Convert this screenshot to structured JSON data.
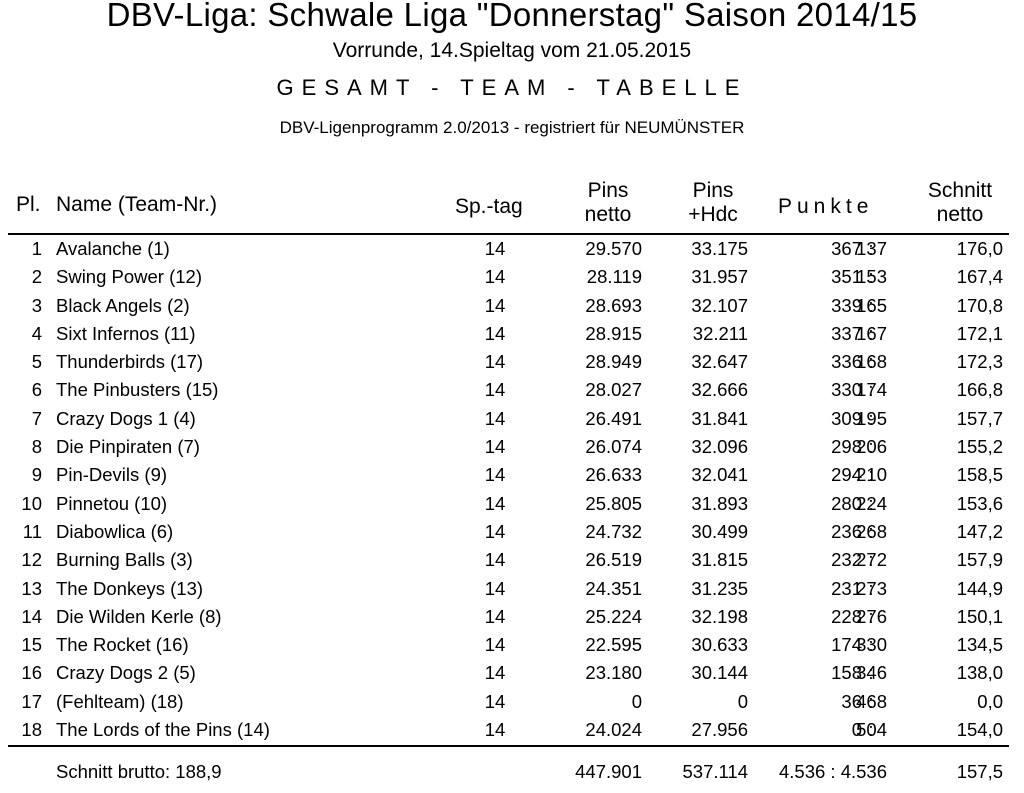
{
  "header": {
    "title": "DBV-Liga: Schwale Liga \"Donnerstag\" Saison 2014/15",
    "subtitle": "Vorrunde, 14.Spieltag vom 21.05.2015",
    "heading": "GESAMT - TEAM - TABELLE",
    "program": "DBV-Ligenprogramm 2.0/2013 - registriert für NEUMÜNSTER"
  },
  "columns": {
    "pl": "Pl.",
    "name": "Name  (Team-Nr.)",
    "spieltag": "Sp.-tag",
    "pins_netto_1": "Pins",
    "pins_netto_2": "netto",
    "pins_hdc_1": "Pins",
    "pins_hdc_2": "+Hdc",
    "punkte": "Punkte",
    "schnitt_1": "Schnitt",
    "schnitt_2": "netto"
  },
  "chart_data": {
    "type": "table",
    "columns": [
      "Pl.",
      "Name  (Team-Nr.)",
      "Sp.-tag",
      "Pins netto",
      "Pins +Hdc",
      "Punkte",
      "Schnitt netto"
    ],
    "rows": [
      {
        "pl": "1",
        "name": "Avalanche  (1)",
        "tag": "14",
        "netto": "29.570",
        "hdc": "33.175",
        "pw": "367",
        "pl2": "137",
        "avg": "176,0"
      },
      {
        "pl": "2",
        "name": "Swing Power  (12)",
        "tag": "14",
        "netto": "28.119",
        "hdc": "31.957",
        "pw": "351",
        "pl2": "153",
        "avg": "167,4"
      },
      {
        "pl": "3",
        "name": "Black Angels  (2)",
        "tag": "14",
        "netto": "28.693",
        "hdc": "32.107",
        "pw": "339",
        "pl2": "165",
        "avg": "170,8"
      },
      {
        "pl": "4",
        "name": "Sixt Infernos  (11)",
        "tag": "14",
        "netto": "28.915",
        "hdc": "32.211",
        "pw": "337",
        "pl2": "167",
        "avg": "172,1"
      },
      {
        "pl": "5",
        "name": "Thunderbirds  (17)",
        "tag": "14",
        "netto": "28.949",
        "hdc": "32.647",
        "pw": "336",
        "pl2": "168",
        "avg": "172,3"
      },
      {
        "pl": "6",
        "name": "The Pinbusters  (15)",
        "tag": "14",
        "netto": "28.027",
        "hdc": "32.666",
        "pw": "330",
        "pl2": "174",
        "avg": "166,8"
      },
      {
        "pl": "7",
        "name": "Crazy Dogs 1  (4)",
        "tag": "14",
        "netto": "26.491",
        "hdc": "31.841",
        "pw": "309",
        "pl2": "195",
        "avg": "157,7"
      },
      {
        "pl": "8",
        "name": "Die Pinpiraten  (7)",
        "tag": "14",
        "netto": "26.074",
        "hdc": "32.096",
        "pw": "298",
        "pl2": "206",
        "avg": "155,2"
      },
      {
        "pl": "9",
        "name": "Pin-Devils  (9)",
        "tag": "14",
        "netto": "26.633",
        "hdc": "32.041",
        "pw": "294",
        "pl2": "210",
        "avg": "158,5"
      },
      {
        "pl": "10",
        "name": "Pinnetou  (10)",
        "tag": "14",
        "netto": "25.805",
        "hdc": "31.893",
        "pw": "280",
        "pl2": "224",
        "avg": "153,6"
      },
      {
        "pl": "11",
        "name": "Diabowlica  (6)",
        "tag": "14",
        "netto": "24.732",
        "hdc": "30.499",
        "pw": "236",
        "pl2": "268",
        "avg": "147,2"
      },
      {
        "pl": "12",
        "name": "Burning Balls  (3)",
        "tag": "14",
        "netto": "26.519",
        "hdc": "31.815",
        "pw": "232",
        "pl2": "272",
        "avg": "157,9"
      },
      {
        "pl": "13",
        "name": "The Donkeys  (13)",
        "tag": "14",
        "netto": "24.351",
        "hdc": "31.235",
        "pw": "231",
        "pl2": "273",
        "avg": "144,9"
      },
      {
        "pl": "14",
        "name": "Die Wilden Kerle  (8)",
        "tag": "14",
        "netto": "25.224",
        "hdc": "32.198",
        "pw": "228",
        "pl2": "276",
        "avg": "150,1"
      },
      {
        "pl": "15",
        "name": "The Rocket  (16)",
        "tag": "14",
        "netto": "22.595",
        "hdc": "30.633",
        "pw": "174",
        "pl2": "330",
        "avg": "134,5"
      },
      {
        "pl": "16",
        "name": "Crazy Dogs 2  (5)",
        "tag": "14",
        "netto": "23.180",
        "hdc": "30.144",
        "pw": "158",
        "pl2": "346",
        "avg": "138,0"
      },
      {
        "pl": "17",
        "name": "(Fehlteam)  (18)",
        "tag": "14",
        "netto": "0",
        "hdc": "0",
        "pw": "36",
        "pl2": "468",
        "avg": "0,0"
      },
      {
        "pl": "18",
        "name": "The Lords of the Pins  (14)",
        "tag": "14",
        "netto": "24.024",
        "hdc": "27.956",
        "pw": "0",
        "pl2": "504",
        "avg": "154,0"
      }
    ],
    "footer": {
      "label": "Schnitt brutto: 188,9",
      "netto": "447.901",
      "hdc": "537.114",
      "punkte": "4.536 : 4.536",
      "avg": "157,5"
    }
  }
}
